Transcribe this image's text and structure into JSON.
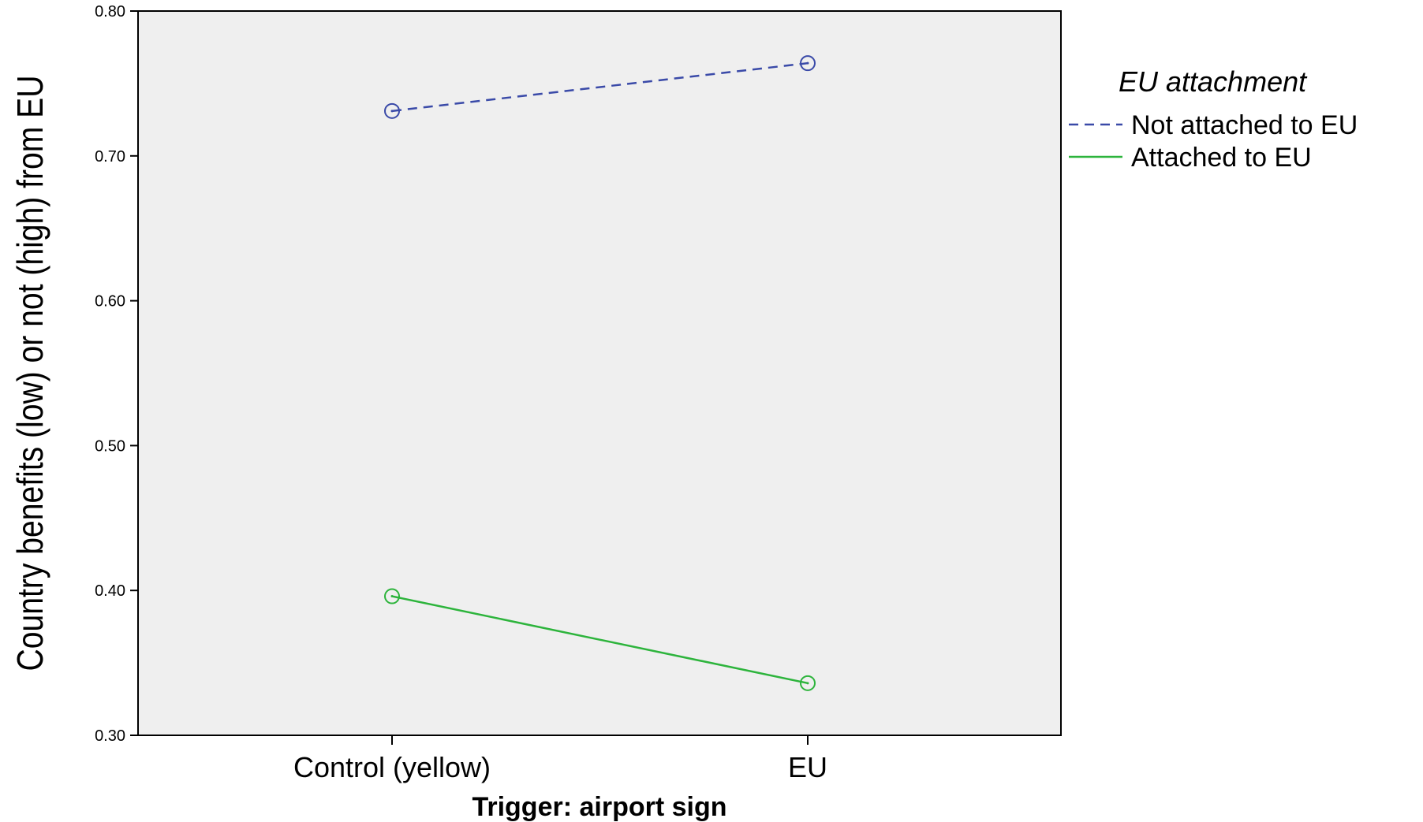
{
  "chart_data": {
    "type": "line",
    "xlabel": "Trigger: airport sign",
    "ylabel": "Country benefits (low) or not (high) from EU",
    "categories": [
      "Control (yellow)",
      "EU"
    ],
    "ylim": [
      0.3,
      0.8
    ],
    "yticks": [
      "0.30",
      "0.40",
      "0.50",
      "0.60",
      "0.70",
      "0.80"
    ],
    "grid": false,
    "legend": {
      "title": "EU attachment",
      "position": "right"
    },
    "plot_background": "#efefef",
    "series": [
      {
        "name": "Not attached to EU",
        "values": [
          0.731,
          0.764
        ],
        "color": "#3a4aa8",
        "style": "dashed"
      },
      {
        "name": "Attached to EU",
        "values": [
          0.396,
          0.336
        ],
        "color": "#2db43c",
        "style": "solid"
      }
    ]
  }
}
